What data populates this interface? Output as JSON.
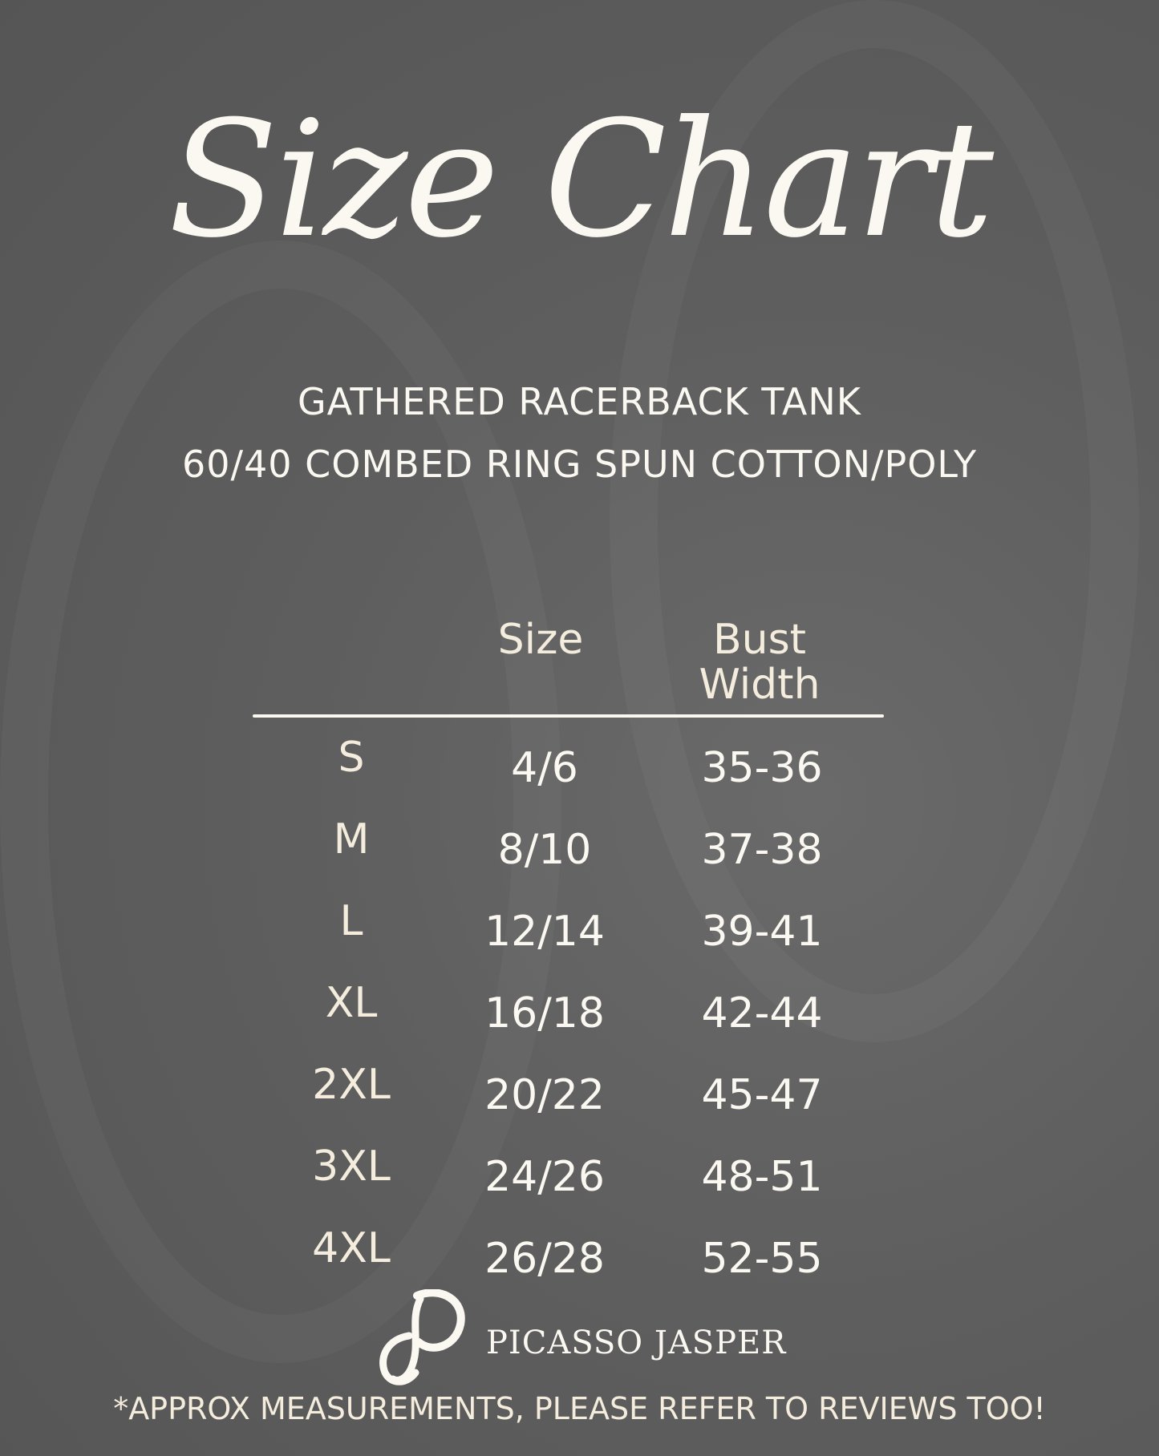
{
  "title": "Size Chart",
  "subtitle": {
    "line1": "GATHERED RACERBACK TANK",
    "line2": "60/40 COMBED RING SPUN COTTON/POLY"
  },
  "table": {
    "headers": {
      "size": "Size",
      "bust_line1": "Bust",
      "bust_line2": "Width"
    },
    "rows": [
      {
        "label": "S",
        "size": "4/6",
        "bust": "35-36"
      },
      {
        "label": "M",
        "size": "8/10",
        "bust": "37-38"
      },
      {
        "label": "L",
        "size": "12/14",
        "bust": "39-41"
      },
      {
        "label": "XL",
        "size": "16/18",
        "bust": "42-44"
      },
      {
        "label": "2XL",
        "size": "20/22",
        "bust": "45-47"
      },
      {
        "label": "3XL",
        "size": "24/26",
        "bust": "48-51"
      },
      {
        "label": "4XL",
        "size": "26/28",
        "bust": "52-55"
      }
    ]
  },
  "brand": {
    "name": "PICASSO JASPER",
    "logo_icon": "picasso-jasper-p-logo"
  },
  "footer": "*APPROX MEASUREMENTS, PLEASE REFER TO REVIEWS TOO!",
  "colors": {
    "background": "#5e5e5e",
    "text": "#f4ecdc",
    "white": "#fbf8f2"
  }
}
